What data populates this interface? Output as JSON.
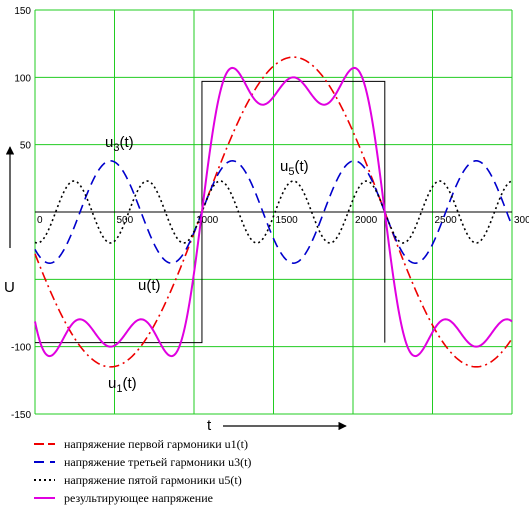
{
  "chart_data": {
    "type": "line",
    "title": "",
    "xlabel": "t",
    "ylabel": "U",
    "xlim": [
      0,
      3000
    ],
    "ylim": [
      -150,
      150
    ],
    "x_ticks": [
      0,
      500,
      1000,
      1500,
      2000,
      2500,
      3000
    ],
    "y_ticks": [
      -150,
      -100,
      50,
      100,
      150
    ],
    "grid": true,
    "period": 2300,
    "square_wave_amplitude": 97,
    "series": [
      {
        "name": "напряжение первой гармоники u1(t)",
        "amplitude": 115,
        "harmonic": 1,
        "color": "#ee0000",
        "dash": "10 4 2 4"
      },
      {
        "name": "напряжение третьей гармоники u3(t)",
        "amplitude": 38,
        "harmonic": 3,
        "color": "#0000cc",
        "dash": "10 6"
      },
      {
        "name": "напряжение пятой гармоники u5(t)",
        "amplitude": 23,
        "harmonic": 5,
        "color": "#000000",
        "dash": "2 3"
      },
      {
        "name": "результирующее напряжение",
        "harmonic": "sum",
        "color": "#e000e0",
        "dash": ""
      }
    ],
    "annotations": [
      {
        "base": "u",
        "sub": "3",
        "suffix": "(t)"
      },
      {
        "base": "u",
        "sub": "5",
        "suffix": "(t)"
      },
      {
        "base": "u",
        "sub": "",
        "suffix": "(t)"
      },
      {
        "base": "u",
        "sub": "1",
        "suffix": "(t)"
      }
    ]
  }
}
